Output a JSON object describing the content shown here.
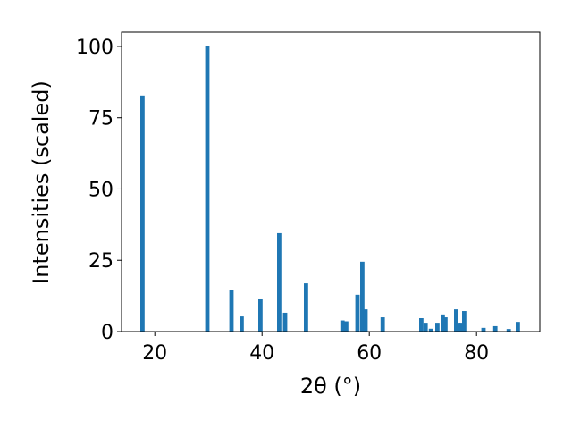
{
  "chart_data": {
    "type": "bar",
    "x_label": "2θ (°)",
    "y_label": "Intensities (scaled)",
    "x": [
      17.7,
      29.8,
      34.3,
      36.2,
      39.7,
      43.2,
      44.3,
      48.2,
      55.0,
      55.7,
      57.8,
      58.7,
      59.3,
      62.5,
      69.7,
      70.5,
      71.5,
      72.7,
      73.7,
      74.2,
      76.2,
      76.6,
      77.2,
      77.7,
      81.3,
      83.5,
      86.0,
      87.7
    ],
    "values": [
      82.8,
      100,
      14.7,
      5.3,
      11.6,
      34.5,
      6.6,
      16.9,
      3.9,
      3.6,
      12.9,
      24.5,
      7.8,
      5.0,
      4.7,
      3.1,
      1.0,
      3.1,
      6.0,
      5.0,
      7.8,
      3.1,
      3.1,
      7.2,
      1.3,
      1.9,
      0.9,
      3.4
    ],
    "color": "#1f77b4",
    "xlim": [
      13.8,
      91.8
    ],
    "ylim": [
      0,
      105
    ],
    "xticks": [
      20,
      40,
      60,
      80
    ],
    "yticks": [
      0,
      25,
      50,
      75,
      100
    ]
  }
}
